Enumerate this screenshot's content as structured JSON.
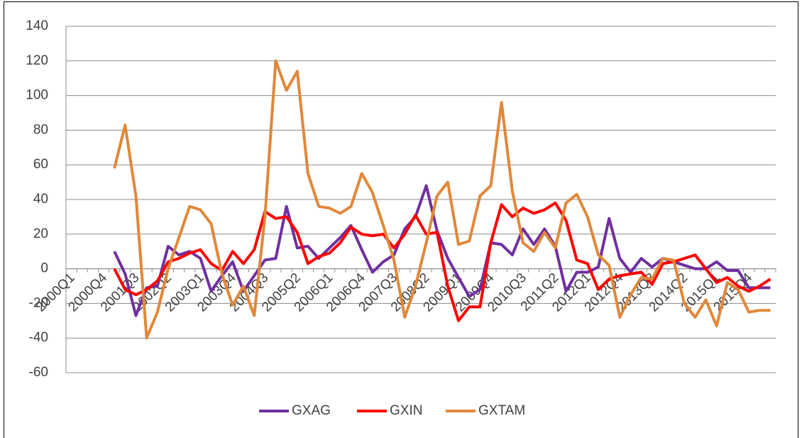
{
  "chart_data": {
    "type": "line",
    "categories": [
      "2000Q1",
      null,
      null,
      "2000Q4",
      null,
      null,
      "2001Q3",
      null,
      null,
      "2002Q2",
      null,
      null,
      "2003Q1",
      null,
      null,
      "2003Q4",
      null,
      null,
      "2004Q3",
      null,
      null,
      "2005Q2",
      null,
      null,
      "2006Q1",
      null,
      null,
      "2006Q4",
      null,
      null,
      "2007Q3",
      null,
      null,
      "2008Q2",
      null,
      null,
      "2009Q1",
      null,
      null,
      "2009Q4",
      null,
      null,
      "2010Q3",
      null,
      null,
      "2011Q2",
      null,
      null,
      "2012Q1",
      null,
      null,
      "2012Q4",
      null,
      null,
      "2013Q3",
      null,
      null,
      "2014Q2",
      null,
      null,
      "2015Q1",
      null,
      null,
      "2015Q4",
      null,
      null
    ],
    "series": [
      {
        "name": "GXAG",
        "color": "#7030a0",
        "values": [
          null,
          null,
          null,
          null,
          10,
          -3,
          -27,
          -11,
          -10,
          13,
          8,
          10,
          6,
          -13,
          -4,
          4,
          -13,
          -4,
          5,
          6,
          36,
          12,
          13,
          6,
          12,
          18,
          25,
          11,
          -2,
          4,
          8,
          23,
          30,
          48,
          22,
          6,
          -5,
          -16,
          -12,
          15,
          14,
          8,
          23,
          14,
          23,
          13,
          -13,
          -2,
          -2,
          1,
          29,
          6,
          -2,
          6,
          1,
          6,
          4,
          2,
          0,
          0,
          4,
          -1,
          -1,
          -11,
          -11,
          -11
        ]
      },
      {
        "name": "GXIN",
        "color": "#ff0000",
        "values": [
          null,
          null,
          null,
          null,
          0,
          -12,
          -15,
          -12,
          -7,
          4,
          6,
          9,
          11,
          3,
          -1,
          10,
          3,
          11,
          33,
          29,
          30,
          21,
          3,
          7,
          9,
          15,
          24,
          20,
          19,
          20,
          12,
          20,
          31,
          20,
          21,
          -10,
          -30,
          -22,
          -22,
          15,
          37,
          30,
          35,
          32,
          34,
          38,
          28,
          5,
          3,
          -12,
          -6,
          -4,
          -3,
          -2,
          -9,
          3,
          4,
          6,
          8,
          0,
          -8,
          -5,
          -10,
          -13,
          -10,
          -6
        ]
      },
      {
        "name": "GXTAM",
        "color": "#e0883a",
        "values": [
          null,
          null,
          null,
          null,
          58,
          83,
          42,
          -40,
          -25,
          0,
          18,
          36,
          34,
          26,
          -3,
          -21,
          -10,
          -27,
          30,
          120,
          103,
          114,
          55,
          36,
          35,
          32,
          36,
          55,
          44,
          25,
          5,
          -28,
          -10,
          15,
          42,
          50,
          14,
          16,
          42,
          48,
          96,
          45,
          15,
          10,
          21,
          12,
          38,
          43,
          30,
          8,
          2,
          -28,
          -15,
          -5,
          -6,
          6,
          5,
          -20,
          -28,
          -18,
          -33,
          -8,
          -12,
          -25,
          -24,
          -24
        ]
      }
    ],
    "ylim": [
      -60,
      140
    ],
    "yticks": [
      -60,
      -40,
      -20,
      0,
      20,
      40,
      60,
      80,
      100,
      120,
      140
    ],
    "grid": true,
    "legend": "bottom"
  }
}
